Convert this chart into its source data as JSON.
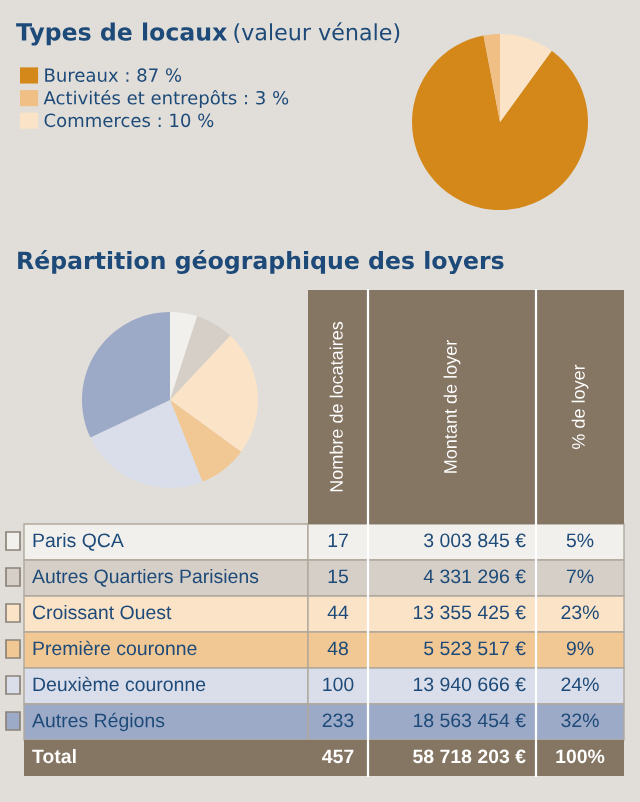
{
  "chart_data": [
    {
      "type": "pie",
      "title": "Types de locaux",
      "subtitle": "(valeur vénale)",
      "legend": "left",
      "categories": [
        "Bureaux : 87 %",
        "Activités et entrepôts : 3 %",
        "Commerces : 10 %"
      ],
      "values": [
        87,
        3,
        10
      ],
      "colors": [
        "#d4881a",
        "#efbf85",
        "#fae3c6"
      ]
    },
    {
      "type": "pie",
      "title": "Répartition géographique des loyers",
      "legend": "bottom",
      "categories": [
        "Paris QCA",
        "Autres Quartiers Parisiens",
        "Croissant Ouest",
        "Première couronne",
        "Deuxième couronne",
        "Autres Régions"
      ],
      "values": [
        5,
        7,
        23,
        9,
        24,
        32
      ],
      "colors": [
        "#f1f0ed",
        "#d5cfc7",
        "#fbe3c8",
        "#f1c894",
        "#d9deea",
        "#9caac8"
      ]
    },
    {
      "type": "other",
      "annotations": [
        "Nombre de locataires",
        "Montant de loyer",
        "% de loyer",
        "17",
        "3 003 845 €",
        "5%",
        "15",
        "4 331 296 €",
        "7%",
        "44",
        "13 355 425 €",
        "23%",
        "48",
        "5 523 517 €",
        "9%",
        "100",
        "13 940 666 €",
        "24%",
        "233",
        "18 563 454 €",
        "32%",
        "Total",
        "457",
        "58 718 203 €",
        "100%"
      ]
    }
  ]
}
